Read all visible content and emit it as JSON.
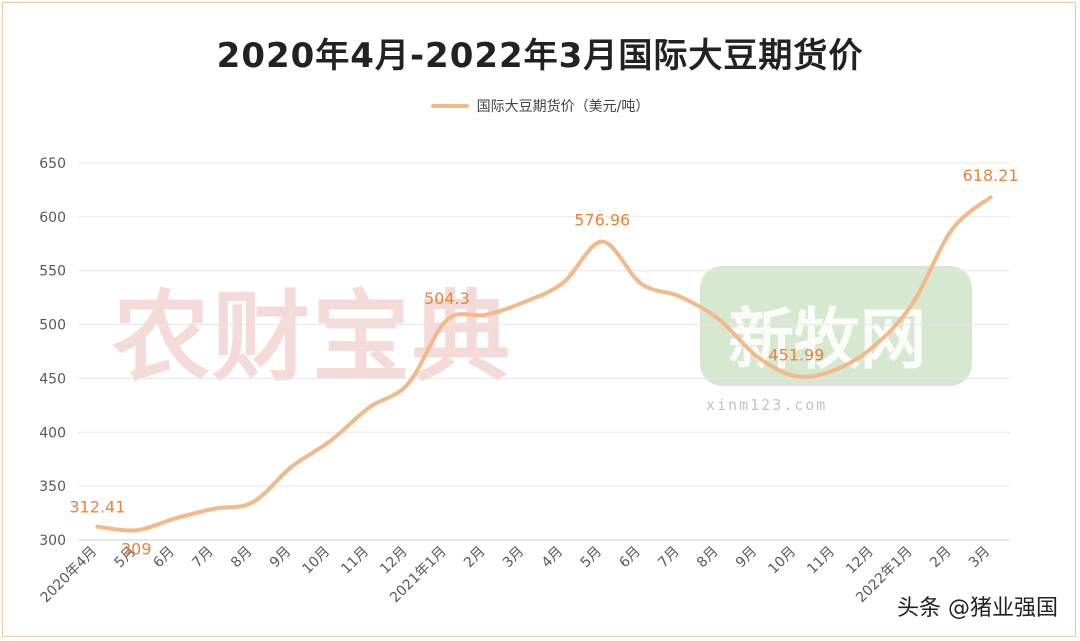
{
  "title": "2020年4月-2022年3月国际大豆期货价",
  "watermarks": {
    "left": "农财宝典",
    "right": "新牧网",
    "right_url": "xinm123.com"
  },
  "credit": "头条 @猪业强国",
  "colors": {
    "line": "#f2b98a",
    "label": "#e8843a",
    "axis_text": "#595959",
    "grid": "#e6e6e6"
  },
  "chart_data": {
    "type": "line",
    "title": "2020年4月-2022年3月国际大豆期货价",
    "xlabel": "",
    "ylabel": "",
    "ylim": [
      300,
      650
    ],
    "yticks": [
      300,
      350,
      400,
      450,
      500,
      550,
      600,
      650
    ],
    "grid": true,
    "legend_position": "top-center",
    "categories": [
      "2020年4月",
      "5月",
      "6月",
      "7月",
      "8月",
      "9月",
      "10月",
      "11月",
      "12月",
      "2021年1月",
      "2月",
      "3月",
      "4月",
      "5月",
      "6月",
      "7月",
      "8月",
      "9月",
      "10月",
      "11月",
      "12月",
      "2022年1月",
      "2月",
      "3月"
    ],
    "series": [
      {
        "name": "国际大豆期货价（美元/吨）",
        "values": [
          312.41,
          309,
          320,
          329,
          335,
          368,
          392,
          423,
          445,
          504.3,
          509,
          521,
          539,
          576.96,
          538,
          526,
          505,
          470,
          451.99,
          458,
          480,
          520,
          588,
          618.21
        ]
      }
    ],
    "data_labels": [
      {
        "index": 0,
        "text": "312.41"
      },
      {
        "index": 1,
        "text": "309"
      },
      {
        "index": 9,
        "text": "504.3"
      },
      {
        "index": 13,
        "text": "576.96"
      },
      {
        "index": 18,
        "text": "451.99"
      },
      {
        "index": 23,
        "text": "618.21"
      }
    ]
  }
}
